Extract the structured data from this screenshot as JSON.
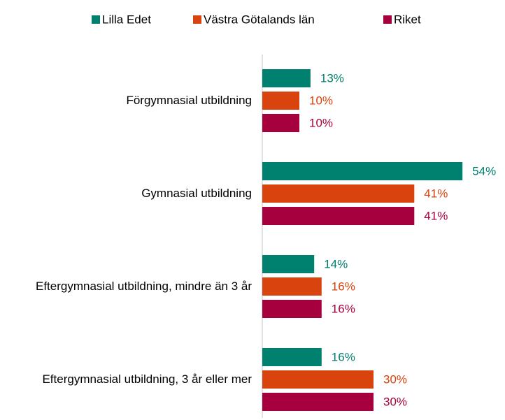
{
  "chart_data": {
    "type": "hbar",
    "categories": [
      "Förgymnasial utbildning",
      "Gymnasial utbildning",
      "Eftergymnasial utbildning, mindre än 3 år",
      "Eftergymnasial utbildning, 3 år eller mer"
    ],
    "series": [
      {
        "name": "Lilla Edet",
        "color": "#00806e",
        "values": [
          13,
          54,
          14,
          16
        ],
        "value_labels": [
          "13%",
          "54%",
          "14%",
          "16%"
        ]
      },
      {
        "name": "Västra Götalands län",
        "color": "#d9430e",
        "values": [
          10,
          41,
          16,
          30
        ],
        "value_labels": [
          "10%",
          "41%",
          "16%",
          "30%"
        ]
      },
      {
        "name": "Riket",
        "color": "#a6003e",
        "values": [
          10,
          41,
          16,
          30
        ],
        "value_labels": [
          "10%",
          "41%",
          "16%",
          "30%"
        ]
      }
    ],
    "legend": "top"
  }
}
